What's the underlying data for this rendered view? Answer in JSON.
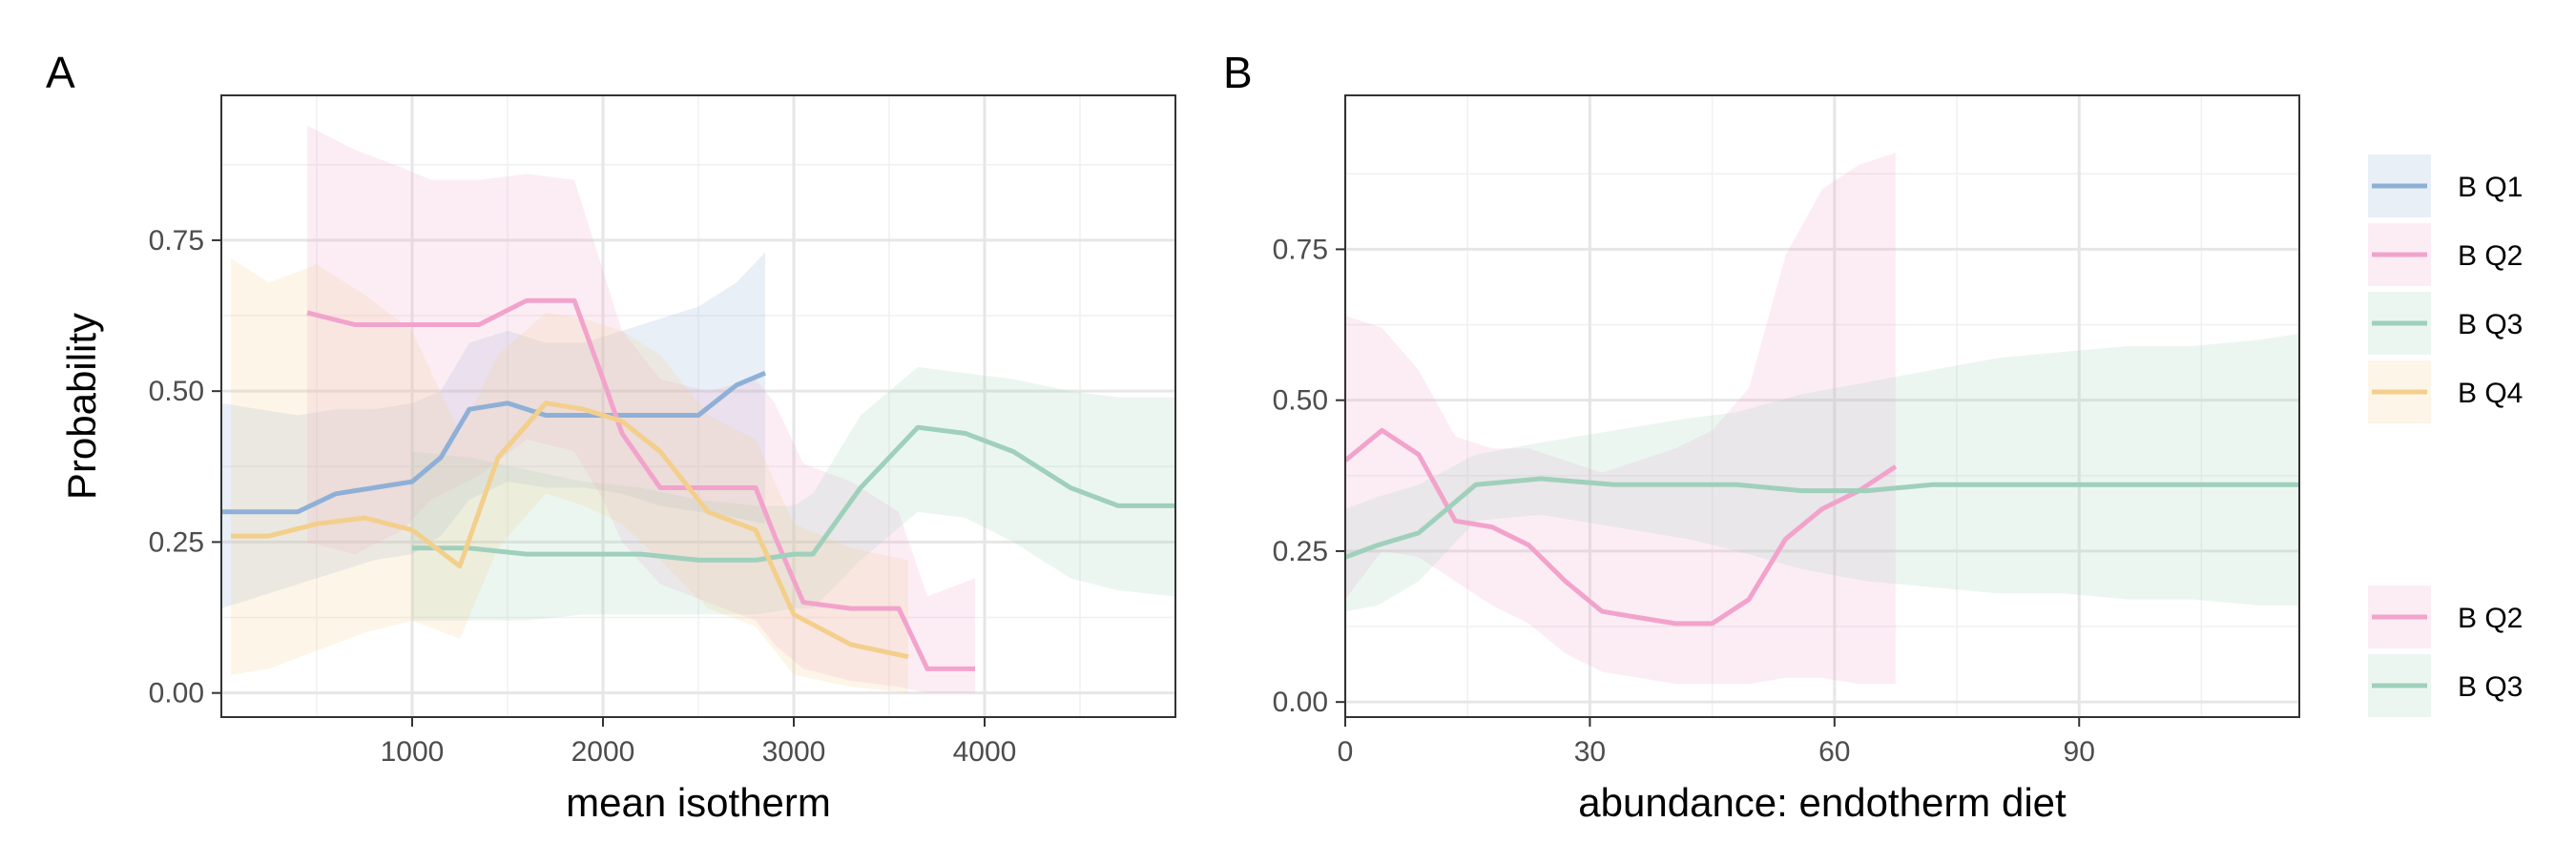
{
  "chart_data": [
    {
      "type": "line",
      "panel_label": "A",
      "xlabel": "mean isotherm",
      "ylabel": "Probability",
      "xlim": [
        0,
        5000
      ],
      "ylim": [
        -0.04,
        0.99
      ],
      "xticks": [
        1000,
        2000,
        3000,
        4000
      ],
      "xtick_labels": [
        "1000",
        "2000",
        "3000",
        "4000"
      ],
      "yticks": [
        0,
        0.25,
        0.5,
        0.75
      ],
      "ytick_labels": [
        "0.00",
        "0.25",
        "0.50",
        "0.75"
      ],
      "grid": true,
      "series": [
        {
          "name": "B Q1",
          "color": "#8fb0d6",
          "x": [
            0,
            200,
            400,
            600,
            800,
            1000,
            1150,
            1300,
            1500,
            1700,
            1900,
            2100,
            2300,
            2500,
            2700,
            2850
          ],
          "y": [
            0.3,
            0.3,
            0.3,
            0.33,
            0.34,
            0.35,
            0.39,
            0.47,
            0.48,
            0.46,
            0.46,
            0.46,
            0.46,
            0.46,
            0.51,
            0.53
          ],
          "lower": [
            0.14,
            0.16,
            0.18,
            0.2,
            0.22,
            0.23,
            0.26,
            0.32,
            0.35,
            0.34,
            0.34,
            0.33,
            0.31,
            0.3,
            0.29,
            0.28
          ],
          "upper": [
            0.48,
            0.47,
            0.46,
            0.47,
            0.47,
            0.48,
            0.5,
            0.58,
            0.6,
            0.58,
            0.58,
            0.6,
            0.62,
            0.64,
            0.68,
            0.73
          ]
        },
        {
          "name": "B Q2",
          "color": "#f2a3cc",
          "x": [
            450,
            700,
            950,
            1100,
            1350,
            1600,
            1850,
            2000,
            2100,
            2300,
            2550,
            2800,
            2900,
            3050,
            3300,
            3550,
            3700,
            3950
          ],
          "y": [
            0.63,
            0.61,
            0.61,
            0.61,
            0.61,
            0.65,
            0.65,
            0.52,
            0.43,
            0.34,
            0.34,
            0.34,
            0.26,
            0.15,
            0.14,
            0.14,
            0.04,
            0.04
          ],
          "lower": [
            0.25,
            0.23,
            0.27,
            0.32,
            0.36,
            0.42,
            0.4,
            0.32,
            0.25,
            0.18,
            0.15,
            0.12,
            0.08,
            0.04,
            0.02,
            0.01,
            0.0,
            0.0
          ],
          "upper": [
            0.94,
            0.9,
            0.87,
            0.85,
            0.85,
            0.86,
            0.85,
            0.7,
            0.6,
            0.52,
            0.5,
            0.52,
            0.48,
            0.38,
            0.35,
            0.3,
            0.16,
            0.19
          ]
        },
        {
          "name": "B Q3",
          "color": "#9fd0bb",
          "x": [
            1000,
            1300,
            1600,
            1900,
            2200,
            2500,
            2800,
            3000,
            3100,
            3350,
            3650,
            3900,
            4150,
            4450,
            4700,
            5000
          ],
          "y": [
            0.24,
            0.24,
            0.23,
            0.23,
            0.23,
            0.22,
            0.22,
            0.23,
            0.23,
            0.34,
            0.44,
            0.43,
            0.4,
            0.34,
            0.31,
            0.31
          ],
          "lower": [
            0.12,
            0.12,
            0.12,
            0.13,
            0.13,
            0.13,
            0.13,
            0.14,
            0.14,
            0.22,
            0.3,
            0.29,
            0.25,
            0.19,
            0.17,
            0.16
          ],
          "upper": [
            0.4,
            0.39,
            0.37,
            0.35,
            0.34,
            0.32,
            0.31,
            0.31,
            0.33,
            0.46,
            0.54,
            0.53,
            0.52,
            0.5,
            0.49,
            0.49
          ]
        },
        {
          "name": "B Q4",
          "color": "#f3cf8c",
          "x": [
            50,
            250,
            500,
            750,
            1000,
            1250,
            1450,
            1700,
            1900,
            2100,
            2300,
            2550,
            2800,
            3000,
            3300,
            3600
          ],
          "y": [
            0.26,
            0.26,
            0.28,
            0.29,
            0.27,
            0.21,
            0.39,
            0.48,
            0.47,
            0.45,
            0.4,
            0.3,
            0.27,
            0.13,
            0.08,
            0.06
          ],
          "lower": [
            0.03,
            0.04,
            0.07,
            0.1,
            0.12,
            0.09,
            0.24,
            0.33,
            0.31,
            0.28,
            0.22,
            0.14,
            0.11,
            0.03,
            0.01,
            0.0
          ],
          "upper": [
            0.72,
            0.68,
            0.71,
            0.66,
            0.6,
            0.43,
            0.56,
            0.63,
            0.62,
            0.6,
            0.56,
            0.46,
            0.42,
            0.28,
            0.24,
            0.22
          ]
        }
      ]
    },
    {
      "type": "line",
      "panel_label": "B",
      "xlabel": "abundance: endotherm diet",
      "ylabel": "",
      "xlim": [
        0,
        117
      ],
      "ylim": [
        -0.025,
        1.005
      ],
      "xticks": [
        0,
        30,
        60,
        90
      ],
      "xtick_labels": [
        "0",
        "30",
        "60",
        "90"
      ],
      "yticks": [
        0,
        0.25,
        0.5,
        0.75
      ],
      "ytick_labels": [
        "0.00",
        "0.25",
        "0.50",
        "0.75"
      ],
      "grid": true,
      "series": [
        {
          "name": "B Q2",
          "color": "#f2a3cc",
          "x": [
            0,
            4.5,
            9,
            13.5,
            18,
            22.5,
            27,
            31.5,
            36,
            40.5,
            45,
            49.5,
            54,
            58.5,
            63,
            67.5
          ],
          "y": [
            0.4,
            0.45,
            0.41,
            0.3,
            0.29,
            0.26,
            0.2,
            0.15,
            0.14,
            0.13,
            0.13,
            0.17,
            0.27,
            0.32,
            0.35,
            0.39
          ],
          "lower": [
            0.17,
            0.25,
            0.24,
            0.2,
            0.16,
            0.13,
            0.08,
            0.05,
            0.04,
            0.03,
            0.03,
            0.03,
            0.04,
            0.04,
            0.03,
            0.03
          ],
          "upper": [
            0.64,
            0.62,
            0.55,
            0.44,
            0.42,
            0.42,
            0.4,
            0.38,
            0.4,
            0.42,
            0.45,
            0.52,
            0.74,
            0.85,
            0.89,
            0.91
          ]
        },
        {
          "name": "B Q3",
          "color": "#9fd0bb",
          "x": [
            0,
            4,
            9,
            16,
            24,
            33,
            42,
            48,
            56,
            64,
            72,
            80,
            88,
            96,
            104,
            112,
            117
          ],
          "y": [
            0.24,
            0.26,
            0.28,
            0.36,
            0.37,
            0.36,
            0.36,
            0.36,
            0.35,
            0.35,
            0.36,
            0.36,
            0.36,
            0.36,
            0.36,
            0.36,
            0.36
          ],
          "lower": [
            0.15,
            0.16,
            0.2,
            0.3,
            0.31,
            0.29,
            0.27,
            0.25,
            0.22,
            0.2,
            0.19,
            0.18,
            0.18,
            0.17,
            0.17,
            0.16,
            0.16
          ],
          "upper": [
            0.32,
            0.34,
            0.36,
            0.41,
            0.43,
            0.45,
            0.47,
            0.48,
            0.51,
            0.53,
            0.55,
            0.57,
            0.58,
            0.59,
            0.59,
            0.6,
            0.61
          ]
        }
      ]
    }
  ],
  "legends": [
    {
      "items": [
        {
          "label": "B Q1",
          "color": "#8fb0d6"
        },
        {
          "label": "B Q2",
          "color": "#f2a3cc"
        },
        {
          "label": "B Q3",
          "color": "#9fd0bb"
        },
        {
          "label": "B Q4",
          "color": "#f3cf8c"
        }
      ]
    },
    {
      "items": [
        {
          "label": "B Q2",
          "color": "#f2a3cc"
        },
        {
          "label": "B Q3",
          "color": "#9fd0bb"
        }
      ]
    }
  ]
}
